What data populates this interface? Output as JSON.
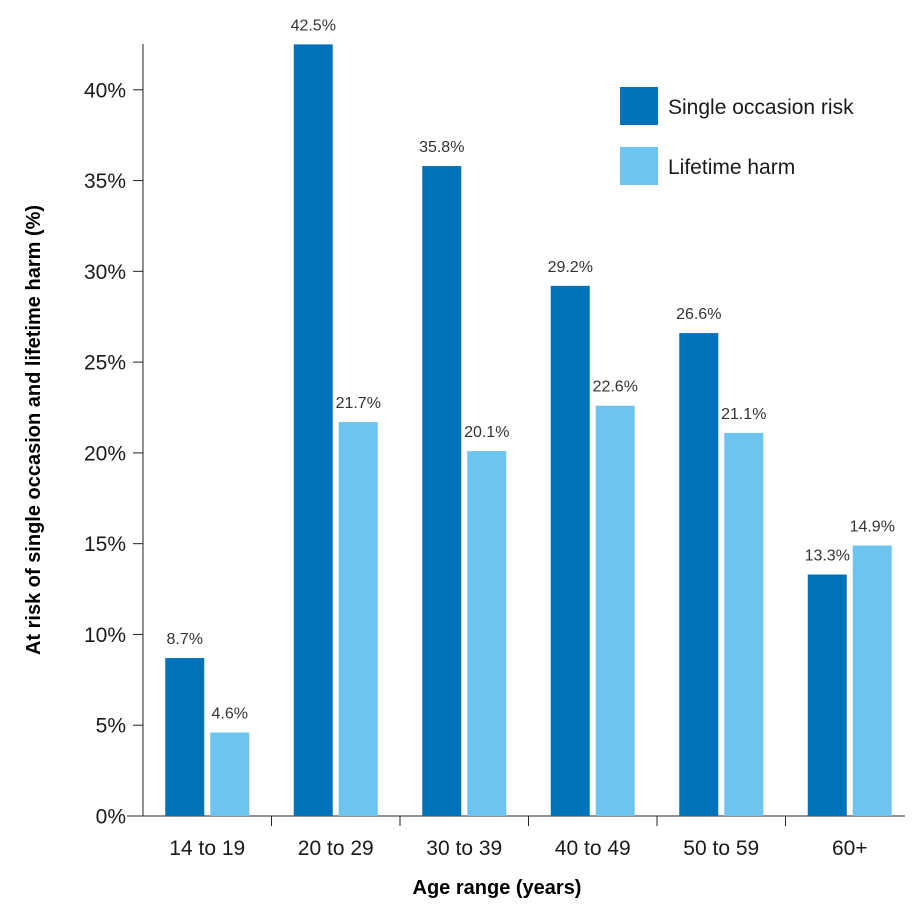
{
  "chart_data": {
    "type": "bar",
    "categories": [
      "14 to 19",
      "20 to 29",
      "30 to 39",
      "40 to 49",
      "50 to 59",
      "60+"
    ],
    "series": [
      {
        "name": "Single occasion risk",
        "color": "#0072bc",
        "values": [
          8.7,
          42.5,
          35.8,
          29.2,
          26.6,
          13.3
        ],
        "labels": [
          "8.7%",
          "42.5%",
          "35.8%",
          "29.2%",
          "26.6%",
          "13.3%"
        ]
      },
      {
        "name": "Lifetime harm",
        "color": "#6dc5ef",
        "values": [
          4.6,
          21.7,
          20.1,
          22.6,
          21.1,
          14.9
        ],
        "labels": [
          "4.6%",
          "21.7%",
          "20.1%",
          "22.6%",
          "21.1%",
          "14.9%"
        ]
      }
    ],
    "xlabel": "Age range (years)",
    "ylabel": "At risk of single occasion and lifetime harm (%)",
    "ylim": [
      0,
      45
    ],
    "yticks": [
      0,
      5,
      10,
      15,
      20,
      25,
      30,
      35,
      40
    ],
    "ytick_labels": [
      "0%",
      "5%",
      "10%",
      "15%",
      "20%",
      "25%",
      "30%",
      "35%",
      "40%"
    ],
    "grid": false,
    "legend_position": "top-right"
  }
}
